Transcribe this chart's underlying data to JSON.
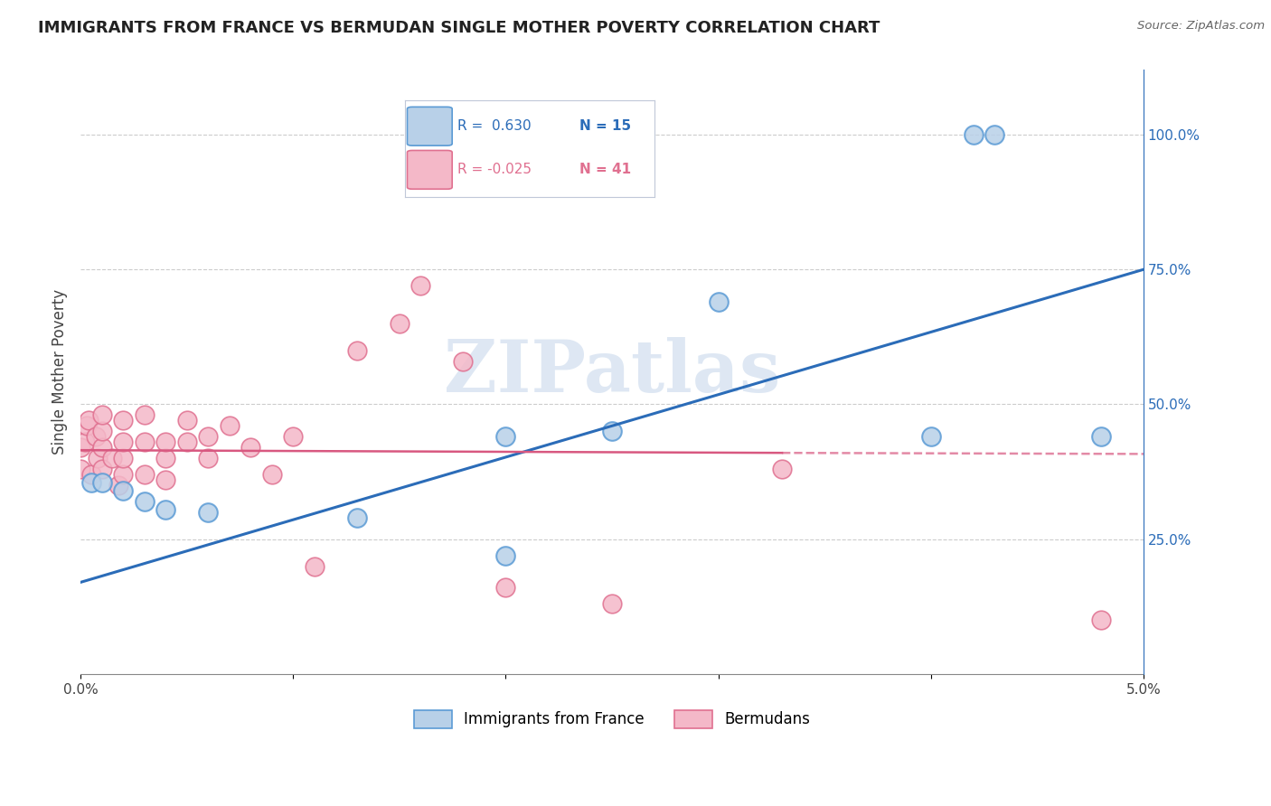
{
  "title": "IMMIGRANTS FROM FRANCE VS BERMUDAN SINGLE MOTHER POVERTY CORRELATION CHART",
  "source": "Source: ZipAtlas.com",
  "ylabel": "Single Mother Poverty",
  "xlim": [
    0.0,
    0.05
  ],
  "ylim": [
    0.0,
    1.12
  ],
  "legend_r_blue": "R =  0.630",
  "legend_n_blue": "N = 15",
  "legend_r_pink": "R = -0.025",
  "legend_n_pink": "N = 41",
  "blue_scatter_x": [
    0.0005,
    0.001,
    0.002,
    0.003,
    0.004,
    0.006,
    0.013,
    0.02,
    0.02,
    0.025,
    0.03,
    0.04,
    0.042,
    0.043,
    0.048
  ],
  "blue_scatter_y": [
    0.355,
    0.355,
    0.34,
    0.32,
    0.305,
    0.3,
    0.29,
    0.44,
    0.22,
    0.45,
    0.69,
    0.44,
    1.0,
    1.0,
    0.44
  ],
  "pink_scatter_x": [
    0.0,
    0.0,
    0.0002,
    0.0003,
    0.0004,
    0.0005,
    0.0007,
    0.0008,
    0.001,
    0.001,
    0.001,
    0.001,
    0.0015,
    0.0018,
    0.002,
    0.002,
    0.002,
    0.002,
    0.003,
    0.003,
    0.003,
    0.004,
    0.004,
    0.004,
    0.005,
    0.005,
    0.006,
    0.006,
    0.007,
    0.008,
    0.009,
    0.01,
    0.011,
    0.013,
    0.015,
    0.016,
    0.018,
    0.02,
    0.025,
    0.033,
    0.048
  ],
  "pink_scatter_y": [
    0.38,
    0.42,
    0.43,
    0.46,
    0.47,
    0.37,
    0.44,
    0.4,
    0.38,
    0.42,
    0.45,
    0.48,
    0.4,
    0.35,
    0.37,
    0.4,
    0.43,
    0.47,
    0.37,
    0.43,
    0.48,
    0.36,
    0.4,
    0.43,
    0.43,
    0.47,
    0.4,
    0.44,
    0.46,
    0.42,
    0.37,
    0.44,
    0.2,
    0.6,
    0.65,
    0.72,
    0.58,
    0.16,
    0.13,
    0.38,
    0.1
  ],
  "blue_color": "#b8d0e8",
  "blue_edge_color": "#5b9bd5",
  "pink_color": "#f4b8c8",
  "pink_edge_color": "#e07090",
  "blue_line_color": "#2b6cb8",
  "pink_line_color": "#d85880",
  "watermark_text": "ZIPatlas",
  "watermark_color": "#c8d8ec",
  "background_color": "#ffffff",
  "grid_color": "#cccccc",
  "legend_box_color": "#f0f4fa",
  "legend_border_color": "#c0c8d8"
}
